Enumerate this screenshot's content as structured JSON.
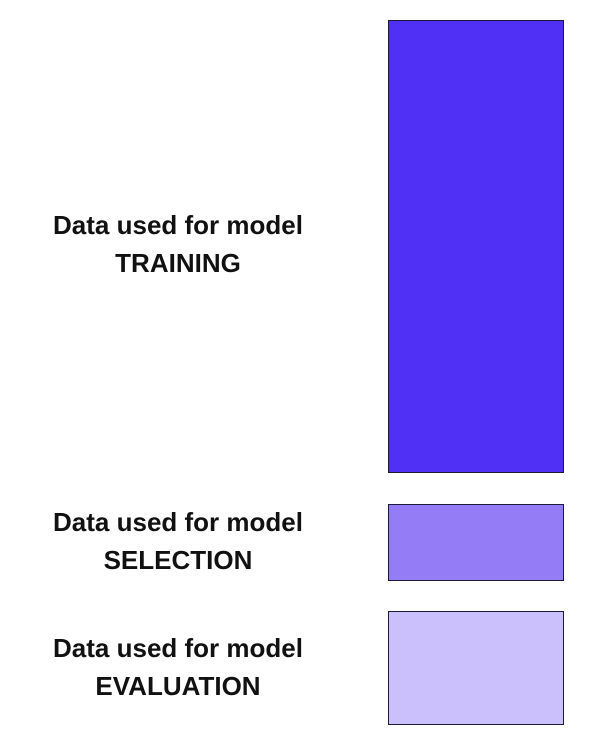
{
  "segments": [
    {
      "line1": "Data used for model",
      "line2": "TRAINING",
      "color": "#5130f5"
    },
    {
      "line1": "Data used for model",
      "line2": "SELECTION",
      "color": "#957cf7"
    },
    {
      "line1": "Data used for model",
      "line2": "EVALUATION",
      "color": "#cbc0fb"
    }
  ]
}
